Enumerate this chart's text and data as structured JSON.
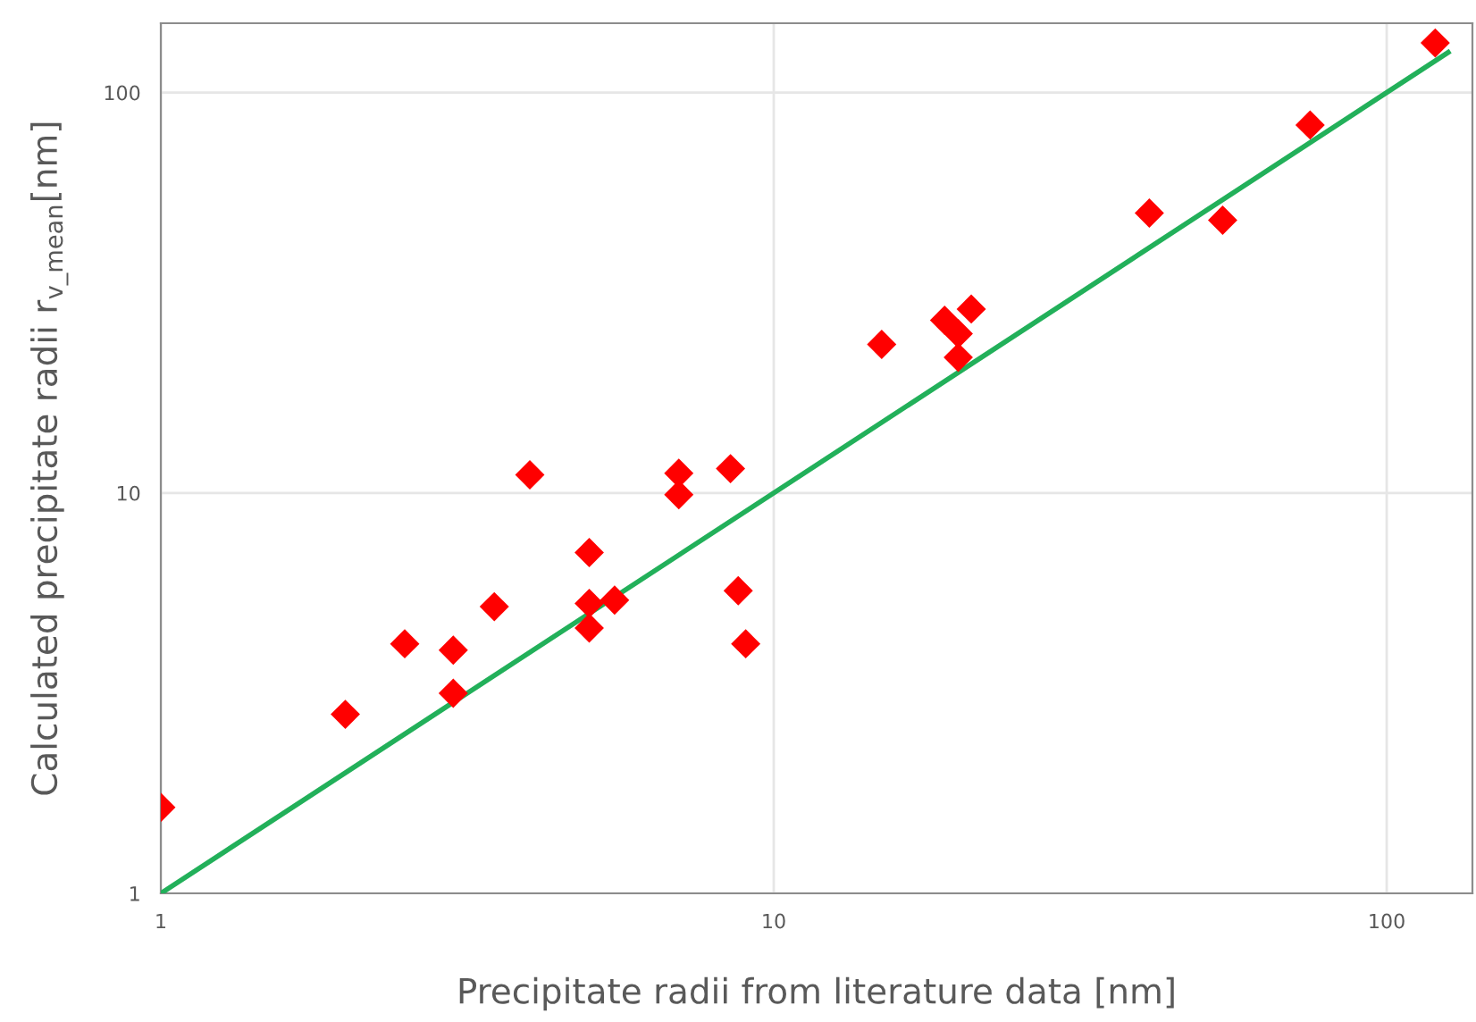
{
  "chart_data": {
    "type": "scatter",
    "xlabel": "Precipitate radii from literature data [nm]",
    "ylabel": "Calculated precipitate radii r$_{v_mean}$[nm]",
    "log": "xy",
    "xlim": [
      1,
      138
    ],
    "ylim": [
      1,
      149
    ],
    "xticks": [
      1,
      10,
      100
    ],
    "yticks": [
      1,
      10,
      100
    ],
    "grid": true,
    "marker": "diamond",
    "series": [
      {
        "color": "#ff0000",
        "x": [
          1,
          2,
          2.5,
          3,
          3,
          3.5,
          4,
          5,
          5,
          5,
          5.5,
          7,
          7,
          8.5,
          8.75,
          9,
          15,
          19,
          20,
          20,
          21,
          41,
          54,
          75,
          120
        ],
        "values": [
          1.64,
          2.8,
          4.2,
          4.05,
          3.16,
          5.2,
          11.1,
          7.1,
          5.3,
          4.6,
          5.4,
          11.2,
          9.9,
          11.5,
          5.7,
          4.2,
          23.5,
          27,
          25,
          21.8,
          28.8,
          50,
          48,
          83,
          133
        ]
      },
      {
        "type": "line",
        "color": "#22b05a",
        "marker": "none",
        "x": [
          1,
          126
        ],
        "values": [
          1,
          126
        ]
      }
    ]
  }
}
